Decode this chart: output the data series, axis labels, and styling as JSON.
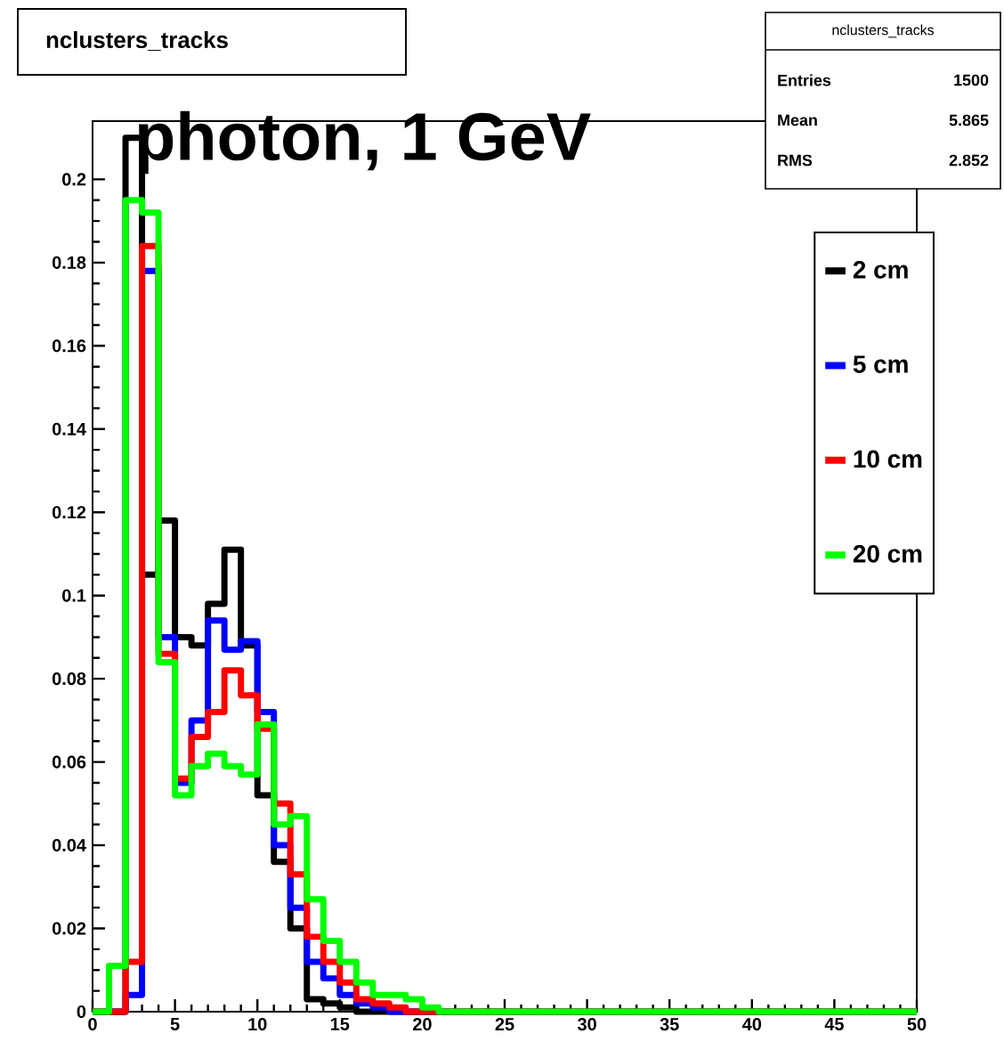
{
  "chart_data": {
    "type": "histogram",
    "title": "nclusters_tracks",
    "subtitle": "photon, 1 GeV",
    "annotations": [
      "nclusters_tracks",
      "Entries",
      "1500",
      "Mean",
      "5.865",
      "RMS",
      "2.852"
    ],
    "bins": [
      0,
      1,
      2,
      3,
      4,
      5,
      6,
      7,
      8,
      9,
      10,
      11,
      12,
      13,
      14,
      15,
      16,
      17,
      18,
      19,
      20,
      21,
      22,
      23,
      24,
      25,
      26,
      27,
      28,
      29,
      30,
      31,
      32,
      33,
      34,
      35,
      36,
      37,
      38,
      39,
      40,
      41,
      42,
      43,
      44,
      45,
      46,
      47,
      48,
      49,
      50
    ],
    "series": [
      {
        "name": "2 cm",
        "color": "#000000",
        "values": [
          0,
          0,
          0.21,
          0.105,
          0.118,
          0.09,
          0.088,
          0.098,
          0.111,
          0.088,
          0.052,
          0.036,
          0.02,
          0.003,
          0.002,
          0.001,
          0,
          0,
          0,
          0,
          0,
          0,
          0,
          0,
          0,
          0,
          0,
          0,
          0,
          0,
          0,
          0,
          0,
          0,
          0,
          0,
          0,
          0,
          0,
          0,
          0,
          0,
          0,
          0,
          0,
          0,
          0,
          0,
          0,
          0
        ]
      },
      {
        "name": "5 cm",
        "color": "#0000ff",
        "values": [
          0,
          0,
          0.004,
          0.178,
          0.09,
          0.055,
          0.07,
          0.094,
          0.087,
          0.089,
          0.072,
          0.04,
          0.025,
          0.012,
          0.008,
          0.004,
          0.002,
          0.001,
          0,
          0,
          0,
          0,
          0,
          0,
          0,
          0,
          0,
          0,
          0,
          0,
          0,
          0,
          0,
          0,
          0,
          0,
          0,
          0,
          0,
          0,
          0,
          0,
          0,
          0,
          0,
          0,
          0,
          0,
          0,
          0
        ]
      },
      {
        "name": "10 cm",
        "color": "#ff0000",
        "values": [
          0,
          0,
          0.012,
          0.184,
          0.086,
          0.056,
          0.066,
          0.072,
          0.082,
          0.076,
          0.068,
          0.05,
          0.033,
          0.018,
          0.012,
          0.007,
          0.003,
          0.002,
          0.001,
          0,
          0,
          0,
          0,
          0,
          0,
          0,
          0,
          0,
          0,
          0,
          0,
          0,
          0,
          0,
          0,
          0,
          0,
          0,
          0,
          0,
          0,
          0,
          0,
          0,
          0,
          0,
          0,
          0,
          0,
          0
        ]
      },
      {
        "name": "20 cm",
        "color": "#00ff00",
        "values": [
          0,
          0.011,
          0.195,
          0.192,
          0.084,
          0.052,
          0.059,
          0.062,
          0.059,
          0.057,
          0.069,
          0.045,
          0.047,
          0.027,
          0.017,
          0.012,
          0.007,
          0.004,
          0.004,
          0.003,
          0.001,
          0,
          0,
          0,
          0,
          0,
          0,
          0,
          0,
          0,
          0,
          0,
          0,
          0,
          0,
          0,
          0,
          0,
          0,
          0,
          0,
          0,
          0,
          0,
          0,
          0,
          0,
          0,
          0,
          0
        ]
      }
    ],
    "xlim": [
      0,
      50
    ],
    "ylim": [
      0,
      0.214
    ],
    "xticks": [
      0,
      5,
      10,
      15,
      20,
      25,
      30,
      35,
      40,
      45,
      50
    ],
    "yticks": [
      0,
      0.02,
      0.04,
      0.06,
      0.08,
      0.1,
      0.12,
      0.14,
      0.16,
      0.18,
      0.2
    ],
    "legend": "top right",
    "grid": false
  }
}
